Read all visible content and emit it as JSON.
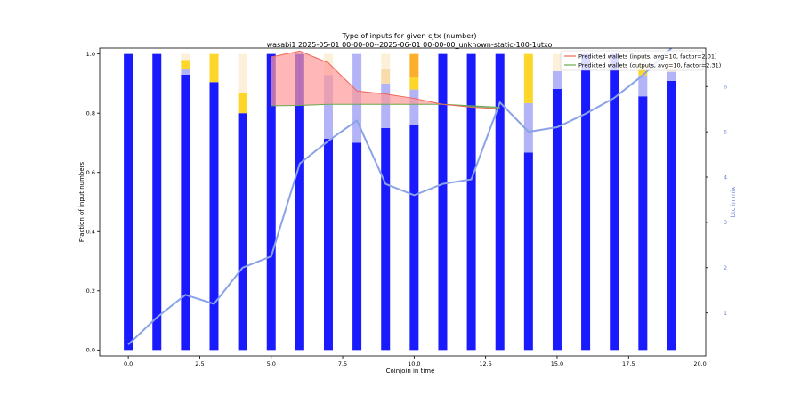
{
  "figure": {
    "title_line1": "Type of inputs for given cjtx (number)",
    "title_line2": "wasabi1 2025-05-01 00-00-00--2025-06-01 00-00-00_unknown-static-100-1utxo"
  },
  "chart_data": {
    "type": "bar",
    "xlabel": "Coinjoin in time",
    "ylabel": "Fraction of input numbers",
    "y2label": "btc in mix",
    "xlim": [
      -1,
      20.2
    ],
    "ylim": [
      -0.02,
      1.02
    ],
    "y2lim": [
      0.05,
      6.85
    ],
    "xticks": [
      0.0,
      2.5,
      5.0,
      7.5,
      10.0,
      12.5,
      15.0,
      17.5,
      20.0
    ],
    "xtick_labels": [
      "0.0",
      "2.5",
      "5.0",
      "7.5",
      "10.0",
      "12.5",
      "15.0",
      "17.5",
      "20.0"
    ],
    "yticks": [
      0.0,
      0.2,
      0.4,
      0.6,
      0.8,
      1.0
    ],
    "ytick_labels": [
      "0.0",
      "0.2",
      "0.4",
      "0.6",
      "0.8",
      "1.0"
    ],
    "y2ticks": [
      1,
      2,
      3,
      4,
      5,
      6
    ],
    "y2tick_labels": [
      "1",
      "2",
      "3",
      "4",
      "5",
      "6"
    ],
    "x": [
      0,
      1,
      2,
      3,
      4,
      5,
      6,
      7,
      8,
      9,
      10,
      11,
      12,
      13,
      14,
      15,
      16,
      17,
      18,
      19
    ],
    "stacks": [
      [
        {
          "color": "#1a1aff",
          "value": 1.0
        }
      ],
      [
        {
          "color": "#1a1aff",
          "value": 1.0
        }
      ],
      [
        {
          "color": "#1a1aff",
          "value": 0.93
        },
        {
          "color": "#b3b3f7",
          "value": 0.02
        },
        {
          "color": "#fcd72a",
          "value": 0.03
        },
        {
          "color": "#fdf0d8",
          "value": 0.02
        }
      ],
      [
        {
          "color": "#1a1aff",
          "value": 0.905
        },
        {
          "color": "#fcd72a",
          "value": 0.095
        }
      ],
      [
        {
          "color": "#1a1aff",
          "value": 0.8
        },
        {
          "color": "#fcd72a",
          "value": 0.067
        },
        {
          "color": "#fdf0d8",
          "value": 0.133
        }
      ],
      [
        {
          "color": "#1a1aff",
          "value": 1.0
        }
      ],
      [
        {
          "color": "#1a1aff",
          "value": 1.0
        }
      ],
      [
        {
          "color": "#1a1aff",
          "value": 0.714
        },
        {
          "color": "#b3b3f7",
          "value": 0.215
        },
        {
          "color": "#fdf0d8",
          "value": 0.071
        }
      ],
      [
        {
          "color": "#1a1aff",
          "value": 0.7
        },
        {
          "color": "#b3b3f7",
          "value": 0.3
        }
      ],
      [
        {
          "color": "#1a1aff",
          "value": 0.75
        },
        {
          "color": "#b3b3f7",
          "value": 0.15
        },
        {
          "color": "#f9dcac",
          "value": 0.05
        },
        {
          "color": "#fdf0d8",
          "value": 0.05
        }
      ],
      [
        {
          "color": "#1a1aff",
          "value": 0.76
        },
        {
          "color": "#b3b3f7",
          "value": 0.12
        },
        {
          "color": "#fcd72a",
          "value": 0.04
        },
        {
          "color": "#fcaf2c",
          "value": 0.08
        }
      ],
      [
        {
          "color": "#1a1aff",
          "value": 1.0
        }
      ],
      [
        {
          "color": "#1a1aff",
          "value": 1.0
        }
      ],
      [
        {
          "color": "#1a1aff",
          "value": 1.0
        }
      ],
      [
        {
          "color": "#1a1aff",
          "value": 0.667
        },
        {
          "color": "#b3b3f7",
          "value": 0.167
        },
        {
          "color": "#fcd72a",
          "value": 0.166
        }
      ],
      [
        {
          "color": "#1a1aff",
          "value": 0.882
        },
        {
          "color": "#b3b3f7",
          "value": 0.06
        },
        {
          "color": "#fdf0d8",
          "value": 0.058
        }
      ],
      [
        {
          "color": "#1a1aff",
          "value": 1.0
        }
      ],
      [
        {
          "color": "#1a1aff",
          "value": 1.0
        }
      ],
      [
        {
          "color": "#1a1aff",
          "value": 0.857
        },
        {
          "color": "#b3b3f7",
          "value": 0.071
        },
        {
          "color": "#fcd72a",
          "value": 0.036
        },
        {
          "color": "#fdf0d8",
          "value": 0.036
        }
      ],
      [
        {
          "color": "#1a1aff",
          "value": 0.909
        },
        {
          "color": "#b3b3f7",
          "value": 0.031
        },
        {
          "color": "#fdf0d8",
          "value": 0.06
        }
      ]
    ],
    "btc_in_mix": {
      "color": "#8aa2e6",
      "x": [
        0,
        1,
        2,
        3,
        4,
        5,
        6,
        7,
        8,
        9,
        10,
        11,
        12,
        13,
        14,
        15,
        16,
        17,
        18,
        19
      ],
      "values": [
        0.3,
        0.9,
        1.4,
        1.2,
        2.0,
        2.25,
        4.3,
        4.8,
        5.25,
        3.85,
        3.6,
        3.85,
        3.95,
        5.65,
        5.0,
        5.1,
        5.4,
        5.75,
        6.25,
        6.85
      ]
    },
    "predicted_inputs": {
      "name": "Predicted wallets (inputs, avg=10, factor=2.01)",
      "color": "#ee6655",
      "x": [
        5,
        6,
        7,
        8,
        9,
        10,
        11,
        12,
        13
      ],
      "values": [
        0.99,
        1.01,
        0.97,
        0.875,
        0.865,
        0.85,
        0.83,
        0.82,
        0.815
      ]
    },
    "predicted_outputs": {
      "name": "Predicted wallets (outputs, avg=10, factor=2.31)",
      "color": "#6aa84f",
      "x": [
        5,
        6,
        7,
        8,
        9,
        10,
        11,
        12,
        13
      ],
      "values": [
        0.825,
        0.826,
        0.83,
        0.83,
        0.83,
        0.83,
        0.83,
        0.825,
        0.82
      ]
    },
    "fill_colors": {
      "inputs_above": "#ff9999",
      "outputs_above": "#55b055"
    },
    "legend_position": "top-right",
    "grid": false
  }
}
